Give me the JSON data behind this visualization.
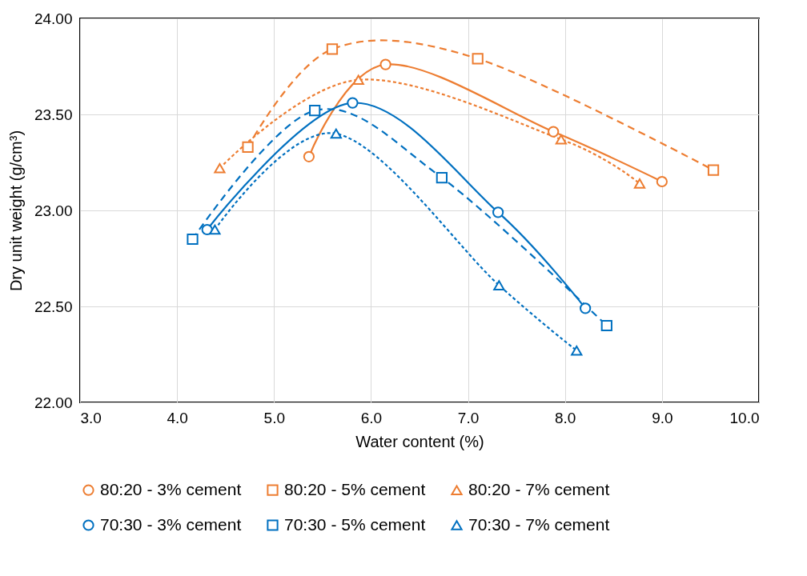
{
  "chart_data": {
    "type": "line",
    "xlabel": "Water content (%)",
    "ylabel": "Dry unit weight (g/cm³)",
    "xlim": [
      3,
      10
    ],
    "xticks": [
      {
        "value": 3,
        "label": "3.0"
      },
      {
        "value": 4,
        "label": "4.0"
      },
      {
        "value": 5,
        "label": "5.0"
      },
      {
        "value": 6,
        "label": "6.0"
      },
      {
        "value": 7,
        "label": "7.0"
      },
      {
        "value": 8,
        "label": "8.0"
      },
      {
        "value": 9,
        "label": "9.0"
      },
      {
        "value": 10,
        "label": "10.0"
      }
    ],
    "ylim": [
      22,
      24
    ],
    "yticks": [
      {
        "value": 22,
        "label": "22.00"
      },
      {
        "value": 22.5,
        "label": "22.50"
      },
      {
        "value": 23,
        "label": "23.00"
      },
      {
        "value": 23.5,
        "label": "23.50"
      },
      {
        "value": 24,
        "label": "24.00"
      }
    ],
    "grid": true,
    "legend": "bottom",
    "series": [
      {
        "name": "80:20 - 3% cement",
        "color": "#ed7d31",
        "marker": "circle",
        "line_style": "solid",
        "x": [
          5.36,
          6.15,
          7.88,
          9.0
        ],
        "values": [
          23.28,
          23.76,
          23.41,
          23.15
        ]
      },
      {
        "name": "80:20 - 5% cement",
        "color": "#ed7d31",
        "marker": "square",
        "line_style": "dashed",
        "x": [
          4.73,
          5.6,
          7.1,
          9.53
        ],
        "values": [
          23.33,
          23.84,
          23.79,
          23.21
        ]
      },
      {
        "name": "80:20 - 7% cement",
        "color": "#ed7d31",
        "marker": "triangle",
        "line_style": "dotted",
        "x": [
          4.44,
          5.87,
          7.96,
          8.77
        ],
        "values": [
          23.22,
          23.68,
          23.37,
          23.14
        ]
      },
      {
        "name": "70:30 - 3% cement",
        "color": "#0070c0",
        "marker": "circle",
        "line_style": "solid",
        "x": [
          4.31,
          5.81,
          7.31,
          8.21
        ],
        "values": [
          22.9,
          23.56,
          22.99,
          22.49
        ]
      },
      {
        "name": "70:30 - 5% cement",
        "color": "#0070c0",
        "marker": "square",
        "line_style": "dashed",
        "x": [
          4.16,
          5.42,
          6.73,
          8.43
        ],
        "values": [
          22.85,
          23.52,
          23.17,
          22.4
        ]
      },
      {
        "name": "70:30 - 7% cement",
        "color": "#0070c0",
        "marker": "triangle",
        "line_style": "dotted",
        "x": [
          4.39,
          5.64,
          7.32,
          8.12
        ],
        "values": [
          22.9,
          23.4,
          22.61,
          22.27
        ]
      }
    ]
  }
}
